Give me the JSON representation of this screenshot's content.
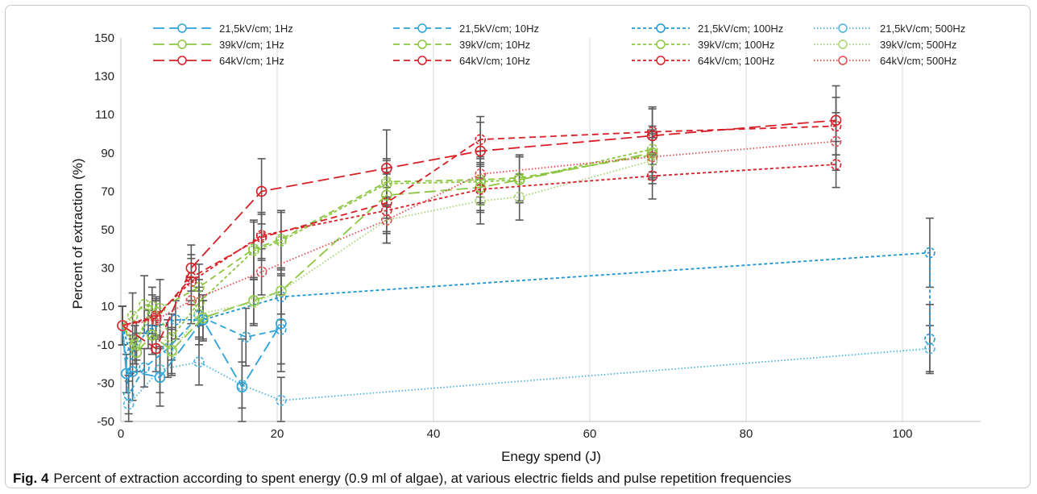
{
  "caption": {
    "label": "Fig. 4",
    "text": "Percent of extraction according to spent energy (0.9 ml of algae), at various electric fields and pulse repetition frequencies"
  },
  "chart_data": {
    "type": "line",
    "title": "",
    "xlabel": "Enegy spend (J)",
    "ylabel": "Percent of extraction (%)",
    "xlim": [
      0,
      110
    ],
    "ylim": [
      -50,
      150
    ],
    "xticks": [
      0,
      20,
      40,
      60,
      80,
      100
    ],
    "yticks": [
      -50,
      -30,
      -10,
      10,
      30,
      50,
      70,
      90,
      110,
      130,
      150
    ],
    "grid": "vertical",
    "legend_position": "top",
    "series": [
      {
        "name": "21,5kV/cm; 1Hz",
        "color": "#2ba3d9",
        "dash": "long",
        "points": [
          [
            0.2,
            0
          ],
          [
            0.7,
            -25
          ],
          [
            1.5,
            -24
          ],
          [
            5,
            -27
          ],
          [
            10.5,
            3
          ],
          [
            15.5,
            -32
          ],
          [
            20.5,
            1
          ]
        ],
        "err": [
          10,
          10,
          15,
          15,
          10,
          25,
          25
        ]
      },
      {
        "name": "21,5kV/cm; 10Hz",
        "color": "#2ba3d9",
        "dash": "medium",
        "points": [
          [
            0.2,
            0
          ],
          [
            1,
            -36
          ],
          [
            3,
            -22
          ],
          [
            6,
            -12
          ],
          [
            10,
            5
          ],
          [
            16,
            -6
          ],
          [
            20.5,
            -2
          ]
        ],
        "err": [
          10,
          10,
          10,
          15,
          15,
          15,
          18
        ]
      },
      {
        "name": "21,5kV/cm; 100Hz",
        "color": "#1e96d2",
        "dash": "short",
        "points": [
          [
            0.2,
            0
          ],
          [
            1.2,
            -15
          ],
          [
            3.5,
            -2
          ],
          [
            7,
            3
          ],
          [
            10.5,
            3
          ],
          [
            20.5,
            15
          ],
          [
            103.5,
            38
          ],
          [
            103.5,
            -7
          ]
        ],
        "err": [
          10,
          10,
          10,
          10,
          10,
          12,
          18,
          18
        ]
      },
      {
        "name": "21,5kV/cm; 500Hz",
        "color": "#4ab3e0",
        "dash": "dot",
        "points": [
          [
            0.2,
            0
          ],
          [
            1,
            -41
          ],
          [
            5,
            -23
          ],
          [
            10,
            -19
          ],
          [
            15.5,
            -31
          ],
          [
            20.5,
            -39
          ],
          [
            103.5,
            -12
          ]
        ],
        "err": [
          10,
          12,
          12,
          12,
          12,
          12,
          12
        ]
      },
      {
        "name": "39kV/cm; 1Hz",
        "color": "#8cc63f",
        "dash": "long",
        "points": [
          [
            0.2,
            0
          ],
          [
            2,
            -14
          ],
          [
            4,
            -5
          ],
          [
            6.5,
            -13
          ],
          [
            10.5,
            4
          ],
          [
            17,
            13
          ],
          [
            20.5,
            18
          ],
          [
            34,
            68
          ],
          [
            46,
            72
          ],
          [
            51,
            76
          ],
          [
            68,
            90
          ]
        ],
        "err": [
          10,
          10,
          10,
          12,
          12,
          12,
          12,
          12,
          12,
          12,
          12
        ]
      },
      {
        "name": "39kV/cm; 10Hz",
        "color": "#8cc63f",
        "dash": "medium",
        "points": [
          [
            0.2,
            0
          ],
          [
            1.5,
            5
          ],
          [
            3,
            11
          ],
          [
            5,
            9
          ],
          [
            10,
            20
          ],
          [
            17,
            40
          ],
          [
            20.5,
            45
          ],
          [
            34,
            75
          ],
          [
            46,
            76
          ],
          [
            51,
            77
          ],
          [
            68,
            89
          ]
        ],
        "err": [
          10,
          12,
          15,
          15,
          12,
          15,
          15,
          12,
          12,
          12,
          12
        ]
      },
      {
        "name": "39kV/cm; 100Hz",
        "color": "#8cc63f",
        "dash": "short",
        "points": [
          [
            0.2,
            0
          ],
          [
            1.8,
            -10
          ],
          [
            4,
            10
          ],
          [
            6.5,
            -6
          ],
          [
            10,
            12
          ],
          [
            17,
            39
          ],
          [
            20.5,
            44
          ],
          [
            34,
            74
          ],
          [
            46,
            75
          ],
          [
            51,
            76
          ],
          [
            68,
            92
          ]
        ],
        "err": [
          10,
          10,
          10,
          12,
          12,
          15,
          15,
          12,
          12,
          12,
          12
        ]
      },
      {
        "name": "39kV/cm; 500Hz",
        "color": "#a8d46f",
        "dash": "dot",
        "points": [
          [
            0.2,
            0
          ],
          [
            2,
            -8
          ],
          [
            4,
            6
          ],
          [
            6.5,
            -14
          ],
          [
            10,
            6
          ],
          [
            17,
            12
          ],
          [
            20.5,
            18
          ],
          [
            34,
            55
          ],
          [
            46,
            65
          ],
          [
            51,
            67
          ],
          [
            68,
            86
          ]
        ],
        "err": [
          10,
          10,
          10,
          12,
          12,
          12,
          12,
          12,
          12,
          12,
          12
        ]
      },
      {
        "name": "64kV/cm; 1Hz",
        "color": "#d71f27",
        "dash": "long",
        "points": [
          [
            0.2,
            0
          ],
          [
            4.5,
            -12
          ],
          [
            9,
            30
          ],
          [
            18,
            70
          ],
          [
            34,
            82
          ],
          [
            46,
            91
          ],
          [
            68,
            99
          ],
          [
            91.5,
            107
          ]
        ],
        "err": [
          10,
          12,
          12,
          17,
          20,
          15,
          15,
          18
        ]
      },
      {
        "name": "64kV/cm; 10Hz",
        "color": "#d71f27",
        "dash": "medium",
        "points": [
          [
            0.2,
            0
          ],
          [
            4.5,
            4
          ],
          [
            9,
            25
          ],
          [
            18,
            46
          ],
          [
            34,
            64
          ],
          [
            46,
            97
          ],
          [
            68,
            101
          ],
          [
            91.5,
            104
          ]
        ],
        "err": [
          10,
          10,
          12,
          12,
          15,
          12,
          12,
          15
        ]
      },
      {
        "name": "64kV/cm; 100Hz",
        "color": "#d71f27",
        "dash": "short",
        "points": [
          [
            0.2,
            0
          ],
          [
            4.5,
            5
          ],
          [
            9,
            23
          ],
          [
            18,
            47
          ],
          [
            34,
            60
          ],
          [
            46,
            71
          ],
          [
            68,
            78
          ],
          [
            91.5,
            84
          ]
        ],
        "err": [
          10,
          10,
          12,
          12,
          12,
          12,
          12,
          12
        ]
      },
      {
        "name": "64kV/cm; 500Hz",
        "color": "#e34a4f",
        "dash": "dot",
        "points": [
          [
            0.2,
            0
          ],
          [
            4.5,
            3
          ],
          [
            9,
            13
          ],
          [
            18,
            28
          ],
          [
            34,
            55
          ],
          [
            46,
            79
          ],
          [
            68,
            88
          ],
          [
            91.5,
            96
          ]
        ],
        "err": [
          10,
          10,
          12,
          12,
          12,
          12,
          12,
          15
        ]
      }
    ]
  }
}
